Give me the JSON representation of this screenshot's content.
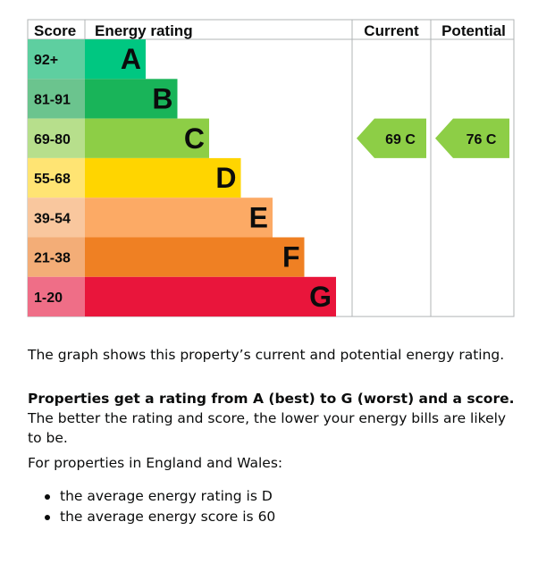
{
  "chart_data": {
    "type": "table",
    "headers": {
      "score": "Score",
      "rating": "Energy rating",
      "current": "Current",
      "potential": "Potential"
    },
    "bands": [
      {
        "range": "92+",
        "letter": "A",
        "color": "#00c781",
        "range_color": "#5ecfa0"
      },
      {
        "range": "81-91",
        "letter": "B",
        "color": "#19b459",
        "range_color": "#6bc48e"
      },
      {
        "range": "69-80",
        "letter": "C",
        "color": "#8dce46",
        "range_color": "#b7df8c"
      },
      {
        "range": "55-68",
        "letter": "D",
        "color": "#ffd500",
        "range_color": "#ffe473"
      },
      {
        "range": "39-54",
        "letter": "E",
        "color": "#fcaa65",
        "range_color": "#f9c79e"
      },
      {
        "range": "21-38",
        "letter": "F",
        "color": "#ef8023",
        "range_color": "#f3ad77"
      },
      {
        "range": "1-20",
        "letter": "G",
        "color": "#e9153b",
        "range_color": "#ef6e87"
      }
    ],
    "current": {
      "score": 69,
      "band": "C",
      "label": "69  C",
      "color": "#8dce46"
    },
    "potential": {
      "score": 76,
      "band": "C",
      "label": "76  C",
      "color": "#8dce46"
    }
  },
  "text": {
    "p1": "The graph shows this property’s current and potential energy rating.",
    "p2_bold": "Properties get a rating from A (best) to G (worst) and a score.",
    "p2_rest": " The better the rating and score, the lower your energy bills are likely to be.",
    "p3": "For properties in England and Wales:",
    "bullets": [
      "the average energy rating is D",
      "the average energy score is 60"
    ]
  }
}
